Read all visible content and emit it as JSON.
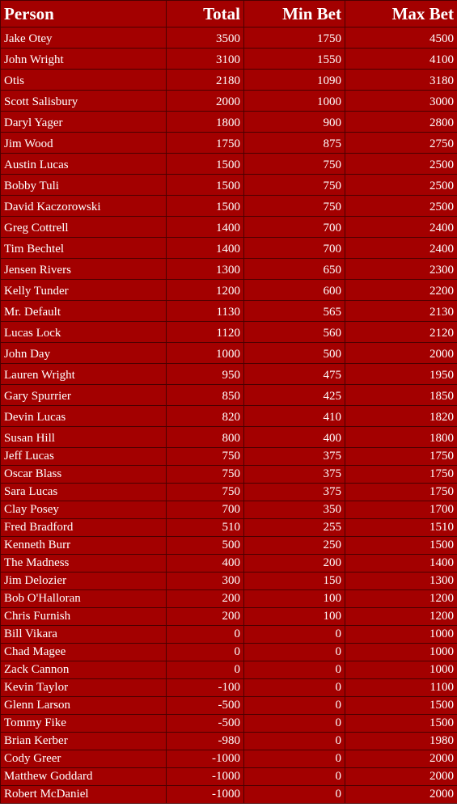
{
  "header": {
    "person": "Person",
    "total": "Total",
    "min_bet": "Min Bet",
    "max_bet": "Max Bet"
  },
  "rows": [
    {
      "person": "Jake Otey",
      "total": "3500",
      "min_bet": "1750",
      "max_bet": "4500"
    },
    {
      "person": "John Wright",
      "total": "3100",
      "min_bet": "1550",
      "max_bet": "4100"
    },
    {
      "person": "Otis",
      "total": "2180",
      "min_bet": "1090",
      "max_bet": "3180"
    },
    {
      "person": "Scott Salisbury",
      "total": "2000",
      "min_bet": "1000",
      "max_bet": "3000"
    },
    {
      "person": "Daryl Yager",
      "total": "1800",
      "min_bet": "900",
      "max_bet": "2800"
    },
    {
      "person": "Jim Wood",
      "total": "1750",
      "min_bet": "875",
      "max_bet": "2750"
    },
    {
      "person": "Austin Lucas",
      "total": "1500",
      "min_bet": "750",
      "max_bet": "2500"
    },
    {
      "person": "Bobby Tuli",
      "total": "1500",
      "min_bet": "750",
      "max_bet": "2500"
    },
    {
      "person": "David Kaczorowski",
      "total": "1500",
      "min_bet": "750",
      "max_bet": "2500"
    },
    {
      "person": "Greg Cottrell",
      "total": "1400",
      "min_bet": "700",
      "max_bet": "2400"
    },
    {
      "person": "Tim Bechtel",
      "total": "1400",
      "min_bet": "700",
      "max_bet": "2400"
    },
    {
      "person": "Jensen Rivers",
      "total": "1300",
      "min_bet": "650",
      "max_bet": "2300"
    },
    {
      "person": "Kelly Tunder",
      "total": "1200",
      "min_bet": "600",
      "max_bet": "2200"
    },
    {
      "person": "Mr. Default",
      "total": "1130",
      "min_bet": "565",
      "max_bet": "2130"
    },
    {
      "person": "Lucas Lock",
      "total": "1120",
      "min_bet": "560",
      "max_bet": "2120"
    },
    {
      "person": "John Day",
      "total": "1000",
      "min_bet": "500",
      "max_bet": "2000"
    },
    {
      "person": "Lauren Wright",
      "total": "950",
      "min_bet": "475",
      "max_bet": "1950"
    },
    {
      "person": "Gary Spurrier",
      "total": "850",
      "min_bet": "425",
      "max_bet": "1850"
    },
    {
      "person": "Devin Lucas",
      "total": "820",
      "min_bet": "410",
      "max_bet": "1820"
    },
    {
      "person": "Susan Hill",
      "total": "800",
      "min_bet": "400",
      "max_bet": "1800"
    },
    {
      "person": "Jeff Lucas",
      "total": "750",
      "min_bet": "375",
      "max_bet": "1750"
    },
    {
      "person": "Oscar Blass",
      "total": "750",
      "min_bet": "375",
      "max_bet": "1750"
    },
    {
      "person": "Sara Lucas",
      "total": "750",
      "min_bet": "375",
      "max_bet": "1750"
    },
    {
      "person": "Clay Posey",
      "total": "700",
      "min_bet": "350",
      "max_bet": "1700"
    },
    {
      "person": "Fred Bradford",
      "total": "510",
      "min_bet": "255",
      "max_bet": "1510"
    },
    {
      "person": "Kenneth Burr",
      "total": "500",
      "min_bet": "250",
      "max_bet": "1500"
    },
    {
      "person": "The Madness",
      "total": "400",
      "min_bet": "200",
      "max_bet": "1400"
    },
    {
      "person": "Jim Delozier",
      "total": "300",
      "min_bet": "150",
      "max_bet": "1300"
    },
    {
      "person": "Bob O'Halloran",
      "total": "200",
      "min_bet": "100",
      "max_bet": "1200"
    },
    {
      "person": "Chris Furnish",
      "total": "200",
      "min_bet": "100",
      "max_bet": "1200"
    },
    {
      "person": "Bill Vikara",
      "total": "0",
      "min_bet": "0",
      "max_bet": "1000"
    },
    {
      "person": "Chad Magee",
      "total": "0",
      "min_bet": "0",
      "max_bet": "1000"
    },
    {
      "person": "Zack Cannon",
      "total": "0",
      "min_bet": "0",
      "max_bet": "1000"
    },
    {
      "person": "Kevin Taylor",
      "total": "-100",
      "min_bet": "0",
      "max_bet": "1100"
    },
    {
      "person": "Glenn Larson",
      "total": "-500",
      "min_bet": "0",
      "max_bet": "1500"
    },
    {
      "person": "Tommy Fike",
      "total": "-500",
      "min_bet": "0",
      "max_bet": "1500"
    },
    {
      "person": "Brian Kerber",
      "total": "-980",
      "min_bet": "0",
      "max_bet": "1980"
    },
    {
      "person": "Cody Greer",
      "total": "-1000",
      "min_bet": "0",
      "max_bet": "2000"
    },
    {
      "person": "Matthew Goddard",
      "total": "-1000",
      "min_bet": "0",
      "max_bet": "2000"
    },
    {
      "person": "Robert McDaniel",
      "total": "-1000",
      "min_bet": "0",
      "max_bet": "2000"
    }
  ],
  "colors": {
    "cell_background": "#a30000",
    "text": "#ffffff",
    "grid_lines": "#4a0000"
  }
}
